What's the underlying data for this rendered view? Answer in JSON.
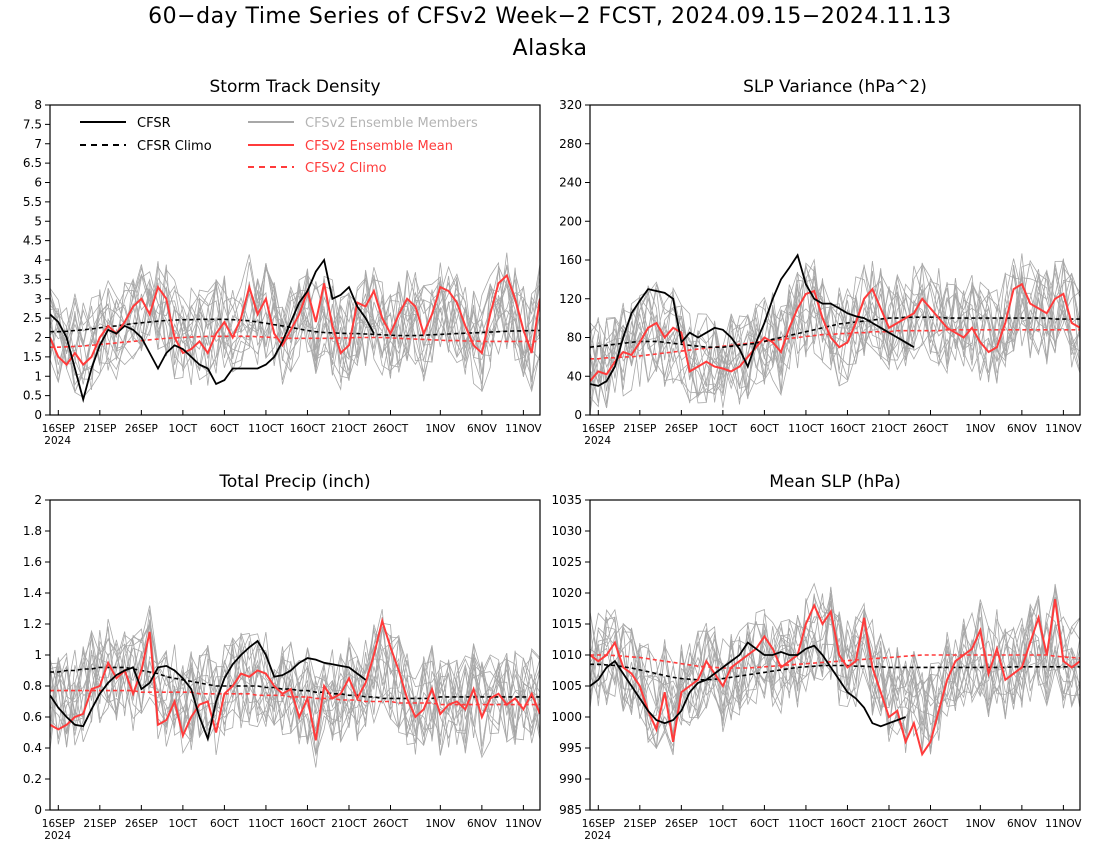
{
  "title": "60−day Time Series of CFSv2 Week−2 FCST, 2024.09.15−2024.11.13",
  "subtitle": "Alaska",
  "legend": {
    "cfsr": "CFSR",
    "cfsr_climo": "CFSR Climo",
    "members": "CFSv2 Ensemble Members",
    "mean": "CFSv2 Ensemble Mean",
    "cfs_climo": "CFSv2 Climo"
  },
  "colors": {
    "obs": "#000000",
    "mean": "#ff3b3b",
    "members": "#a8a8a8",
    "axis": "#000000"
  },
  "x_ticks": [
    "16SEP",
    "21SEP",
    "26SEP",
    "1OCT",
    "6OCT",
    "11OCT",
    "16OCT",
    "21OCT",
    "26OCT",
    "1NOV",
    "6NOV",
    "11NOV"
  ],
  "x_year_label": "2024",
  "chart_data": [
    {
      "type": "line",
      "title": "Storm Track Density",
      "ylim": [
        0,
        8
      ],
      "yticks": [
        "0",
        "0.5",
        "1",
        "1.5",
        "2",
        "2.5",
        "3",
        "3.5",
        "4",
        "4.5",
        "5",
        "5.5",
        "6",
        "6.5",
        "7",
        "7.5",
        "8"
      ],
      "x_start": "2024-09-15",
      "x_end": "2024-11-13",
      "series": [
        {
          "name": "CFSR",
          "values": [
            2.6,
            2.4,
            2.0,
            1.2,
            0.4,
            1.2,
            1.8,
            2.2,
            2.1,
            2.3,
            2.2,
            2.0,
            1.6,
            1.2,
            1.6,
            1.8,
            1.7,
            1.5,
            1.3,
            1.2,
            0.8,
            0.9,
            1.2,
            1.2,
            1.2,
            1.2,
            1.3,
            1.5,
            1.9,
            2.4,
            2.9,
            3.2,
            3.7,
            4.0,
            3.0,
            3.1,
            3.3,
            2.8,
            2.5,
            2.1
          ]
        },
        {
          "name": "CFSR Climo",
          "values": [
            2.15,
            2.15,
            2.16,
            2.18,
            2.2,
            2.22,
            2.25,
            2.28,
            2.3,
            2.33,
            2.36,
            2.38,
            2.4,
            2.42,
            2.44,
            2.45,
            2.46,
            2.46,
            2.47,
            2.47,
            2.47,
            2.47,
            2.46,
            2.45,
            2.43,
            2.4,
            2.37,
            2.33,
            2.3,
            2.26,
            2.22,
            2.18,
            2.15,
            2.13,
            2.12,
            2.11,
            2.1,
            2.1,
            2.09,
            2.08,
            2.07,
            2.06,
            2.05,
            2.05,
            2.05,
            2.06,
            2.07,
            2.08,
            2.09,
            2.1,
            2.11,
            2.12,
            2.13,
            2.14,
            2.15,
            2.16,
            2.17,
            2.17,
            2.18,
            2.18
          ]
        },
        {
          "name": "CFSv2 Ensemble Mean",
          "values": [
            2.0,
            1.5,
            1.3,
            1.6,
            1.3,
            1.5,
            2.0,
            2.3,
            2.1,
            2.4,
            2.8,
            3.0,
            2.6,
            3.3,
            3.0,
            2.0,
            1.6,
            1.7,
            1.9,
            1.6,
            2.1,
            2.4,
            2.0,
            2.5,
            3.3,
            2.6,
            3.0,
            2.1,
            1.8,
            2.2,
            2.6,
            3.2,
            2.4,
            3.4,
            2.3,
            1.6,
            1.8,
            2.9,
            2.8,
            3.2,
            2.5,
            2.1,
            2.6,
            3.0,
            2.8,
            2.1,
            2.6,
            3.3,
            3.2,
            2.9,
            2.3,
            1.8,
            1.6,
            2.6,
            3.4,
            3.6,
            3.0,
            2.2,
            1.6,
            3.0
          ]
        },
        {
          "name": "CFSv2 Climo",
          "values": [
            1.75,
            1.75,
            1.76,
            1.77,
            1.78,
            1.8,
            1.82,
            1.84,
            1.86,
            1.88,
            1.9,
            1.92,
            1.94,
            1.96,
            1.98,
            1.99,
            2.0,
            2.01,
            2.02,
            2.03,
            2.03,
            2.03,
            2.03,
            2.03,
            2.03,
            2.02,
            2.01,
            2.0,
            1.99,
            1.98,
            1.98,
            1.98,
            1.98,
            1.98,
            1.98,
            1.99,
            1.99,
            2.0,
            2.0,
            2.0,
            2.0,
            1.99,
            1.98,
            1.97,
            1.96,
            1.95,
            1.94,
            1.93,
            1.92,
            1.92,
            1.91,
            1.91,
            1.9,
            1.9,
            1.9,
            1.9,
            1.9,
            1.9,
            1.9,
            1.9
          ]
        }
      ]
    },
    {
      "type": "line",
      "title": "SLP Variance (hPa^2)",
      "ylim": [
        0,
        320
      ],
      "yticks": [
        "0",
        "40",
        "80",
        "120",
        "160",
        "200",
        "240",
        "280",
        "320"
      ],
      "x_start": "2024-09-15",
      "x_end": "2024-11-13",
      "series": [
        {
          "name": "CFSR",
          "values": [
            32,
            30,
            35,
            50,
            80,
            105,
            118,
            130,
            128,
            126,
            120,
            75,
            85,
            80,
            85,
            90,
            88,
            80,
            68,
            50,
            75,
            95,
            120,
            140,
            152,
            165,
            135,
            120,
            115,
            115,
            110,
            105,
            102,
            100,
            95,
            90,
            85,
            80,
            75,
            70
          ]
        },
        {
          "name": "CFSR Climo",
          "values": [
            70,
            71,
            72,
            73,
            74,
            75,
            76,
            76,
            76,
            75,
            74,
            73,
            72,
            71,
            70,
            70,
            70,
            71,
            72,
            73,
            74,
            76,
            78,
            80,
            82,
            84,
            86,
            88,
            90,
            92,
            94,
            95,
            96,
            97,
            98,
            99,
            100,
            100,
            101,
            101,
            101,
            101,
            101,
            100,
            100,
            100,
            100,
            100,
            100,
            100,
            100,
            100,
            100,
            100,
            100,
            100,
            99,
            99,
            99,
            99
          ]
        },
        {
          "name": "CFSv2 Ensemble Mean",
          "values": [
            35,
            45,
            42,
            55,
            65,
            62,
            75,
            90,
            95,
            80,
            90,
            85,
            45,
            50,
            55,
            50,
            48,
            45,
            50,
            60,
            70,
            80,
            75,
            65,
            90,
            110,
            125,
            128,
            100,
            80,
            70,
            75,
            95,
            120,
            130,
            110,
            90,
            95,
            100,
            105,
            120,
            110,
            100,
            90,
            85,
            80,
            90,
            75,
            65,
            70,
            95,
            130,
            135,
            115,
            110,
            105,
            120,
            125,
            95,
            90
          ]
        },
        {
          "name": "CFSv2 Climo",
          "values": [
            58,
            58,
            59,
            59,
            60,
            60,
            61,
            62,
            63,
            64,
            65,
            66,
            67,
            68,
            69,
            70,
            71,
            72,
            73,
            74,
            75,
            76,
            77,
            78,
            79,
            80,
            81,
            82,
            83,
            83,
            84,
            84,
            85,
            85,
            86,
            86,
            86,
            87,
            87,
            87,
            87,
            87,
            87,
            88,
            88,
            88,
            88,
            88,
            88,
            88,
            88,
            88,
            88,
            88,
            88,
            88,
            88,
            88,
            88,
            88
          ]
        }
      ]
    },
    {
      "type": "line",
      "title": "Total Precip (inch)",
      "ylim": [
        0,
        2
      ],
      "yticks": [
        "0",
        "0.2",
        "0.4",
        "0.6",
        "0.8",
        "1",
        "1.2",
        "1.4",
        "1.6",
        "1.8",
        "2"
      ],
      "x_start": "2024-09-15",
      "x_end": "2024-11-13",
      "series": [
        {
          "name": "CFSR",
          "values": [
            0.74,
            0.66,
            0.6,
            0.55,
            0.54,
            0.65,
            0.75,
            0.82,
            0.87,
            0.9,
            0.92,
            0.78,
            0.82,
            0.92,
            0.93,
            0.9,
            0.85,
            0.78,
            0.6,
            0.46,
            0.7,
            0.85,
            0.94,
            1.0,
            1.05,
            1.09,
            1.0,
            0.86,
            0.87,
            0.9,
            0.95,
            0.98,
            0.97,
            0.95,
            0.94,
            0.93,
            0.92,
            0.88,
            0.84
          ]
        },
        {
          "name": "CFSR Climo",
          "values": [
            0.89,
            0.89,
            0.9,
            0.9,
            0.91,
            0.91,
            0.92,
            0.92,
            0.92,
            0.92,
            0.91,
            0.9,
            0.89,
            0.88,
            0.86,
            0.85,
            0.84,
            0.83,
            0.82,
            0.81,
            0.8,
            0.8,
            0.8,
            0.8,
            0.8,
            0.8,
            0.79,
            0.79,
            0.78,
            0.78,
            0.77,
            0.77,
            0.76,
            0.76,
            0.75,
            0.75,
            0.74,
            0.74,
            0.73,
            0.73,
            0.72,
            0.72,
            0.72,
            0.72,
            0.72,
            0.72,
            0.72,
            0.73,
            0.73,
            0.73,
            0.73,
            0.73,
            0.73,
            0.73,
            0.73,
            0.73,
            0.73,
            0.73,
            0.73,
            0.73
          ]
        },
        {
          "name": "CFSv2 Ensemble Mean",
          "values": [
            0.55,
            0.52,
            0.55,
            0.6,
            0.62,
            0.78,
            0.8,
            0.95,
            0.85,
            0.9,
            0.75,
            0.9,
            1.15,
            0.55,
            0.58,
            0.7,
            0.48,
            0.6,
            0.68,
            0.7,
            0.5,
            0.75,
            0.8,
            0.88,
            0.86,
            0.9,
            0.88,
            0.8,
            0.75,
            0.78,
            0.6,
            0.72,
            0.45,
            0.8,
            0.72,
            0.75,
            0.85,
            0.72,
            0.82,
            1.0,
            1.22,
            1.05,
            0.9,
            0.72,
            0.6,
            0.65,
            0.78,
            0.62,
            0.68,
            0.7,
            0.65,
            0.78,
            0.6,
            0.72,
            0.75,
            0.68,
            0.72,
            0.65,
            0.75,
            0.62
          ]
        },
        {
          "name": "CFSv2 Climo",
          "values": [
            0.77,
            0.77,
            0.77,
            0.77,
            0.77,
            0.77,
            0.77,
            0.77,
            0.77,
            0.77,
            0.77,
            0.76,
            0.76,
            0.76,
            0.76,
            0.76,
            0.76,
            0.76,
            0.75,
            0.75,
            0.75,
            0.75,
            0.75,
            0.75,
            0.75,
            0.74,
            0.74,
            0.74,
            0.74,
            0.73,
            0.73,
            0.73,
            0.72,
            0.72,
            0.72,
            0.71,
            0.71,
            0.71,
            0.7,
            0.7,
            0.7,
            0.7,
            0.69,
            0.69,
            0.69,
            0.69,
            0.69,
            0.68,
            0.68,
            0.68,
            0.68,
            0.68,
            0.68,
            0.68,
            0.68,
            0.68,
            0.68,
            0.68,
            0.68,
            0.68
          ]
        }
      ]
    },
    {
      "type": "line",
      "title": "Mean SLP (hPa)",
      "ylim": [
        985,
        1035
      ],
      "yticks": [
        "985",
        "990",
        "995",
        "1000",
        "1005",
        "1010",
        "1015",
        "1020",
        "1025",
        "1030",
        "1035"
      ],
      "x_start": "2024-09-15",
      "x_end": "2024-11-13",
      "series": [
        {
          "name": "CFSR",
          "values": [
            1005,
            1006,
            1008,
            1009,
            1007,
            1005,
            1003,
            1001,
            999.5,
            999,
            999.5,
            1001,
            1004,
            1005.5,
            1006,
            1007,
            1008,
            1009,
            1010,
            1012,
            1011,
            1010,
            1010,
            1010.5,
            1010,
            1010,
            1011,
            1011.5,
            1010,
            1008,
            1006,
            1004,
            1003,
            1001.5,
            999,
            998.5,
            999,
            999.5,
            1000
          ]
        },
        {
          "name": "CFSR Climo",
          "values": [
            1008.5,
            1008.5,
            1008.4,
            1008.3,
            1008.1,
            1007.9,
            1007.6,
            1007.3,
            1007.0,
            1006.7,
            1006.4,
            1006.2,
            1006.1,
            1006.0,
            1006.0,
            1006.1,
            1006.2,
            1006.4,
            1006.6,
            1006.8,
            1007.0,
            1007.2,
            1007.4,
            1007.6,
            1007.8,
            1008.0,
            1008.1,
            1008.2,
            1008.3,
            1008.3,
            1008.3,
            1008.3,
            1008.2,
            1008.2,
            1008.1,
            1008.1,
            1008.0,
            1008.0,
            1008.0,
            1008.0,
            1008.0,
            1008.0,
            1008.0,
            1008.0,
            1008.0,
            1008.0,
            1008.0,
            1008.0,
            1008.0,
            1008.0,
            1008.0,
            1008.1,
            1008.1,
            1008.1,
            1008.1,
            1008.1,
            1008.1,
            1008.1,
            1008.1,
            1008.1
          ]
        },
        {
          "name": "CFSv2 Ensemble Mean",
          "values": [
            1010,
            1009,
            1010,
            1012,
            1008,
            1007,
            1005,
            1001,
            998,
            1004,
            996,
            1004,
            1005,
            1006,
            1009,
            1007,
            1005,
            1008,
            1009,
            1010,
            1011,
            1013,
            1011,
            1008,
            1009,
            1010,
            1015,
            1018,
            1015,
            1017,
            1010,
            1008,
            1009,
            1016,
            1008,
            1004,
            1000,
            1001,
            996,
            999,
            994,
            996,
            1001,
            1006,
            1009,
            1010,
            1011,
            1014,
            1007,
            1011,
            1006,
            1007,
            1008,
            1012,
            1016,
            1010,
            1019,
            1009,
            1008,
            1009
          ]
        },
        {
          "name": "CFSv2 Climo",
          "values": [
            1010,
            1010,
            1010,
            1009.9,
            1009.8,
            1009.7,
            1009.6,
            1009.4,
            1009.2,
            1009.0,
            1008.8,
            1008.6,
            1008.4,
            1008.2,
            1008.1,
            1008.0,
            1007.9,
            1007.9,
            1007.9,
            1007.9,
            1008.0,
            1008.1,
            1008.2,
            1008.3,
            1008.4,
            1008.5,
            1008.6,
            1008.7,
            1008.8,
            1008.9,
            1009.0,
            1009.1,
            1009.2,
            1009.3,
            1009.4,
            1009.5,
            1009.6,
            1009.7,
            1009.8,
            1009.9,
            1010,
            1010,
            1010,
            1010,
            1010,
            1010,
            1010,
            1010,
            1010,
            1010,
            1010,
            1010,
            1010,
            1010,
            1010,
            1010,
            1009.8,
            1009.7,
            1009.6,
            1009.5
          ]
        }
      ]
    }
  ]
}
